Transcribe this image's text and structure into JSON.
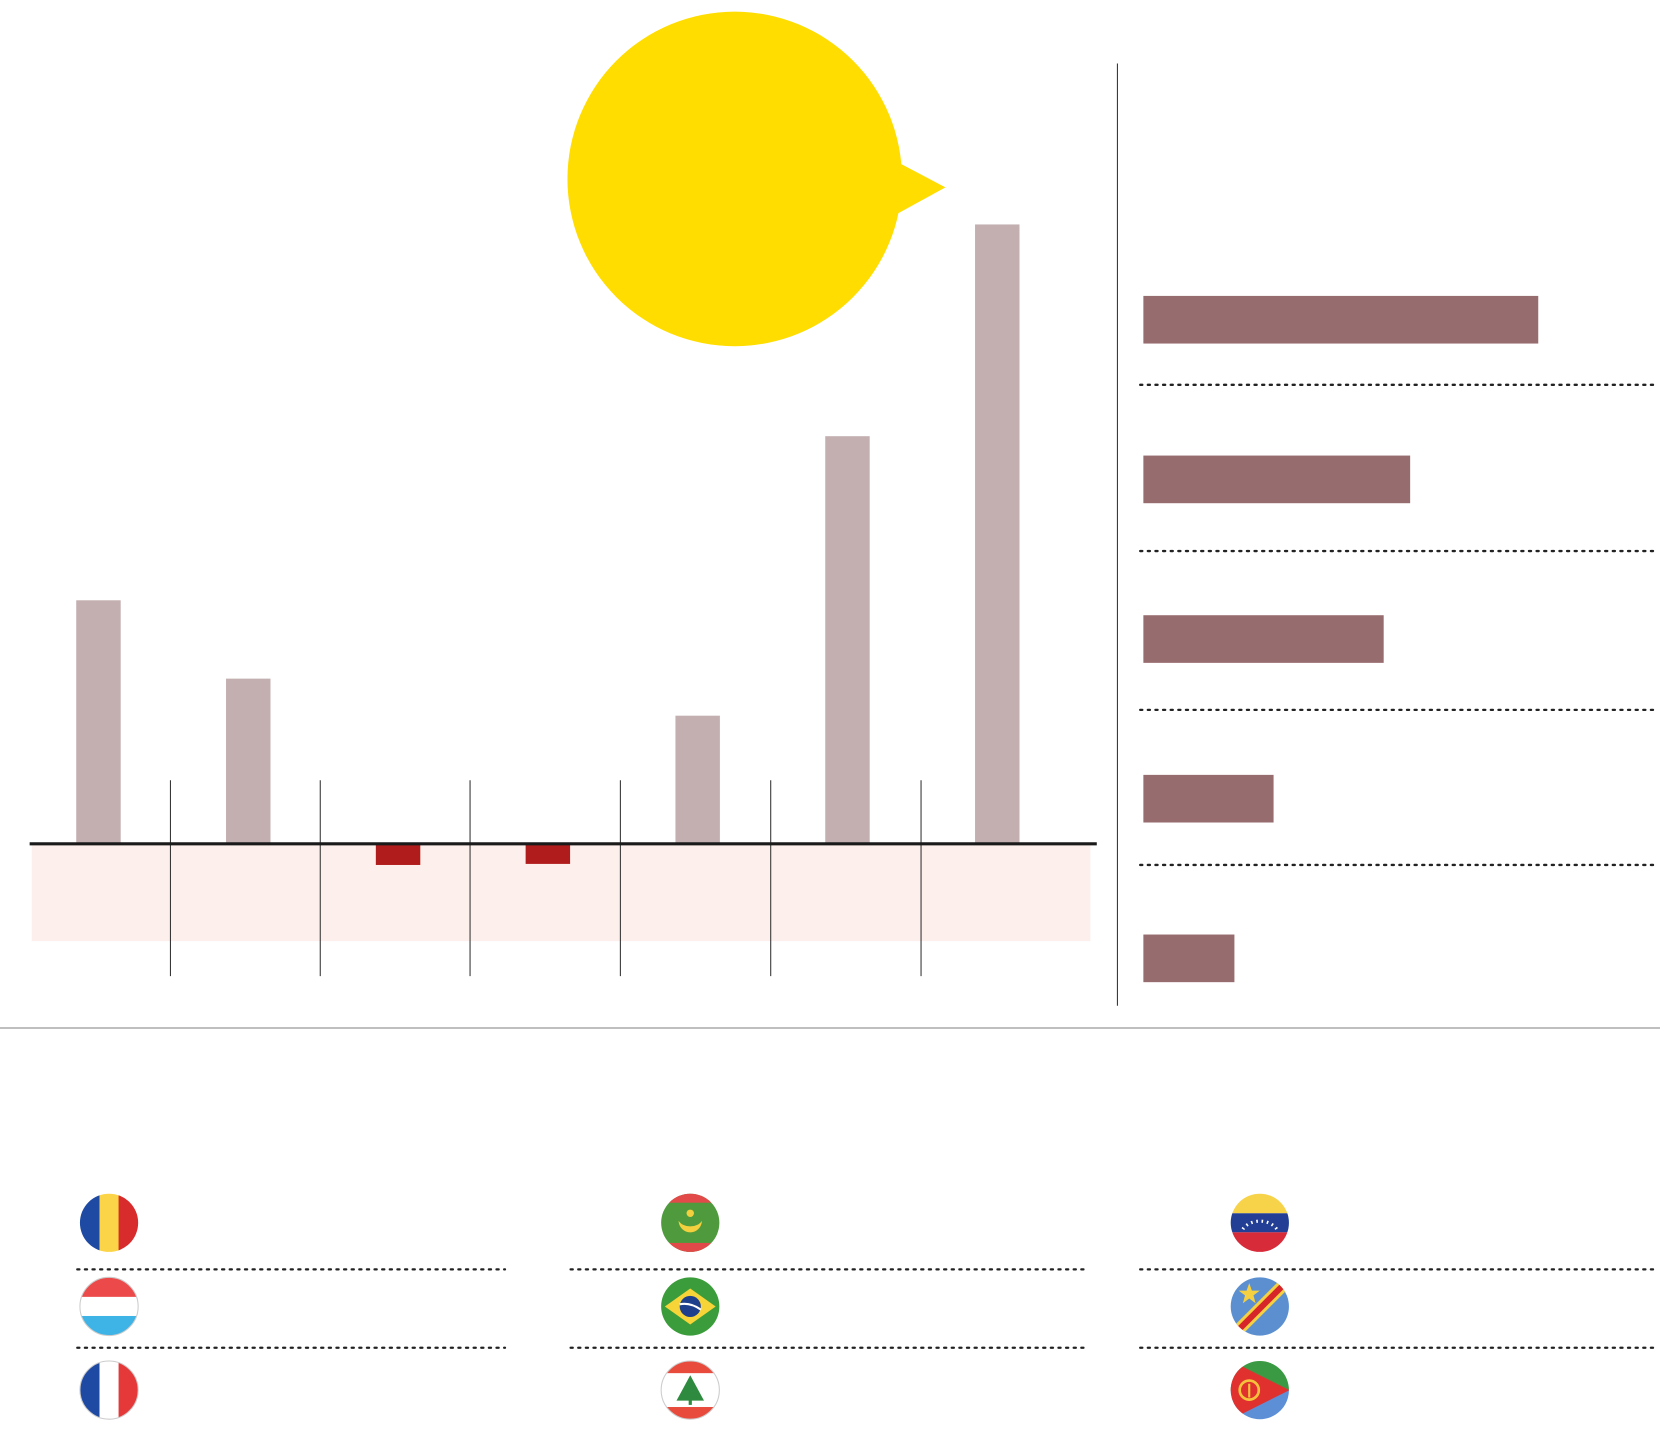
{
  "chart_data": [
    {
      "type": "bar",
      "values": [
        23,
        15.6,
        -2,
        -1.9,
        12.1,
        38.5,
        58.5
      ],
      "color": "#c4afb0",
      "negative_color": "#b01c1c",
      "ylim": [
        -9.2,
        60
      ]
    },
    {
      "type": "barh",
      "values": [
        37.3,
        25.2,
        22.7,
        12.3,
        8.6
      ],
      "color": "#976c6f",
      "xlim": [
        0,
        48.4
      ]
    }
  ]
}
